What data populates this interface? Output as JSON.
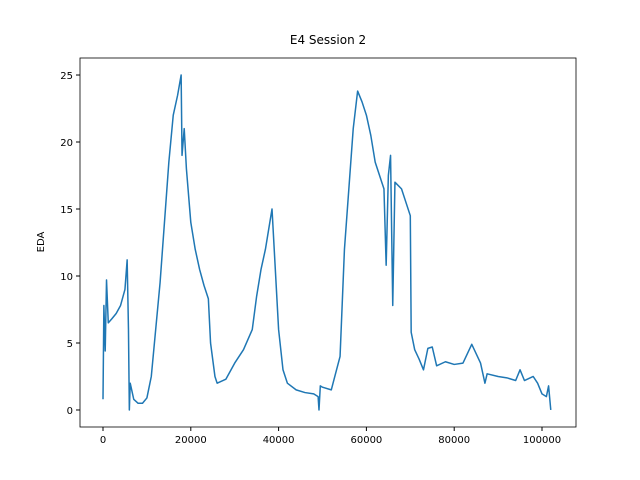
{
  "chart_data": {
    "type": "line",
    "title": "E4 Session 2",
    "y_label": "EDA",
    "color": "#1f77b4",
    "x": [
      0,
      200,
      500,
      800,
      1200,
      2000,
      3000,
      4000,
      5000,
      5500,
      5800,
      6000,
      6200,
      7000,
      8000,
      9000,
      10000,
      11000,
      12000,
      13000,
      14000,
      15000,
      16000,
      17000,
      17800,
      18000,
      18500,
      19000,
      20000,
      21000,
      22000,
      23000,
      24000,
      24500,
      25500,
      26000,
      28000,
      30000,
      32000,
      34000,
      35000,
      36000,
      37000,
      38000,
      38500,
      39000,
      40000,
      41000,
      42000,
      44000,
      46000,
      48000,
      49000,
      49200,
      49500,
      50000,
      52000,
      54000,
      55000,
      56000,
      57000,
      58000,
      59000,
      60000,
      61000,
      62000,
      63000,
      64000,
      64500,
      65000,
      65500,
      66000,
      66500,
      68000,
      70000,
      70200,
      71000,
      72000,
      73000,
      74000,
      75000,
      76000,
      78000,
      80000,
      82000,
      84000,
      85000,
      86000,
      87000,
      87500,
      90000,
      92000,
      94000,
      95000,
      96000,
      98000,
      99000,
      100000,
      101000,
      101500,
      102000
    ],
    "values": [
      0.8,
      7.8,
      4.4,
      9.7,
      6.5,
      6.8,
      7.2,
      7.8,
      9.0,
      11.2,
      6.0,
      0.0,
      2.0,
      0.8,
      0.5,
      0.5,
      0.9,
      2.5,
      6.0,
      9.5,
      14.0,
      18.5,
      22.0,
      23.5,
      25.0,
      19.0,
      21.0,
      18.0,
      14.0,
      12.0,
      10.5,
      9.3,
      8.3,
      5.0,
      2.5,
      2.0,
      2.3,
      3.5,
      4.5,
      6.0,
      8.5,
      10.5,
      12.0,
      14.0,
      15.0,
      12.0,
      6.0,
      3.0,
      2.0,
      1.5,
      1.3,
      1.2,
      1.0,
      0.0,
      1.8,
      1.7,
      1.5,
      4.0,
      12.0,
      16.5,
      21.0,
      23.8,
      23.0,
      22.0,
      20.5,
      18.5,
      17.5,
      16.5,
      10.8,
      17.5,
      19.0,
      7.8,
      17.0,
      16.5,
      14.5,
      5.8,
      4.5,
      3.8,
      3.0,
      4.6,
      4.7,
      3.3,
      3.6,
      3.4,
      3.5,
      4.9,
      4.2,
      3.5,
      2.0,
      2.7,
      2.5,
      2.4,
      2.2,
      3.0,
      2.2,
      2.5,
      2.0,
      1.2,
      1.0,
      1.8,
      0.0
    ],
    "xlim": [
      -5240,
      107745
    ],
    "ylim": [
      -1.27,
      26.27
    ],
    "xticks": [
      0,
      20000,
      40000,
      60000,
      80000,
      100000
    ],
    "yticks": [
      0,
      5,
      10,
      15,
      20,
      25
    ],
    "grid": false
  }
}
